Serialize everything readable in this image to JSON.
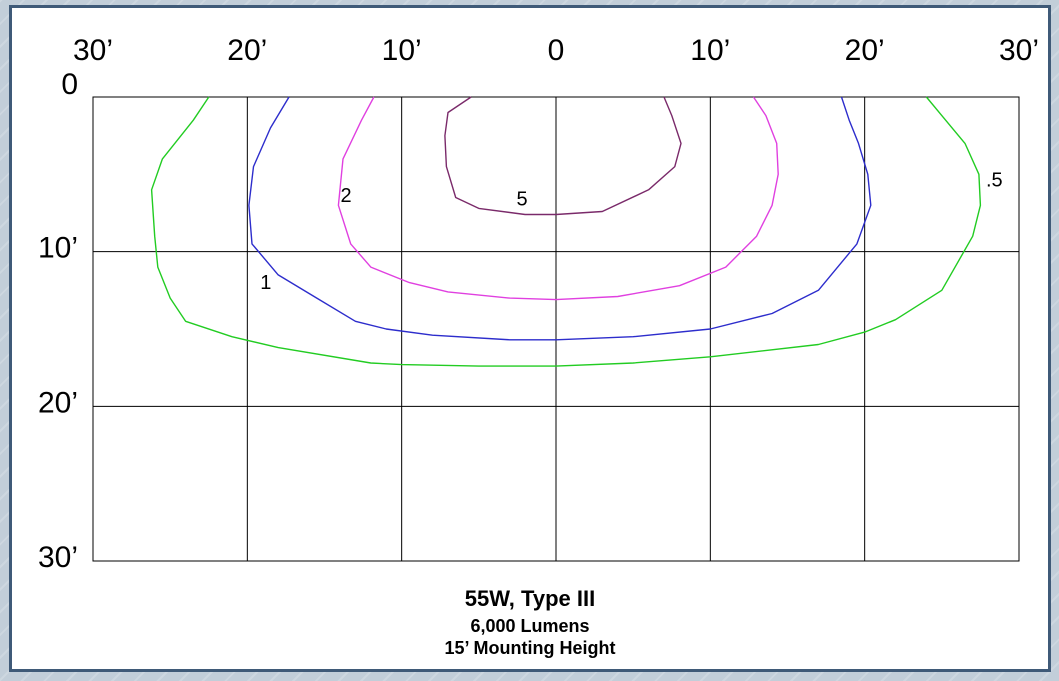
{
  "chart_data": {
    "type": "contour",
    "x_ticks": [
      "30’",
      "20’",
      "10’",
      "0",
      "10’",
      "20’",
      "30’"
    ],
    "y_ticks": [
      "0",
      "10’",
      "20’",
      "30’"
    ],
    "x_range_ft": [
      -30,
      30
    ],
    "y_range_ft": [
      0,
      30
    ],
    "grid": true,
    "contours": [
      {
        "label": ".5",
        "color": "#22cc22",
        "points": [
          [
            -22.5,
            0
          ],
          [
            -23.5,
            1.5
          ],
          [
            -25.5,
            4
          ],
          [
            -26.2,
            6
          ],
          [
            -26,
            9
          ],
          [
            -25.8,
            11
          ],
          [
            -25,
            13
          ],
          [
            -24,
            14.5
          ],
          [
            -21,
            15.5
          ],
          [
            -18,
            16.2
          ],
          [
            -12,
            17.2
          ],
          [
            -10,
            17.3
          ],
          [
            -5,
            17.4
          ],
          [
            0,
            17.4
          ],
          [
            5,
            17.2
          ],
          [
            10,
            16.8
          ],
          [
            17,
            16
          ],
          [
            20,
            15.2
          ],
          [
            22,
            14.4
          ],
          [
            25,
            12.5
          ],
          [
            27,
            9
          ],
          [
            27.5,
            7
          ],
          [
            27.4,
            5
          ],
          [
            26.5,
            3
          ],
          [
            25,
            1.2
          ],
          [
            24,
            0
          ]
        ]
      },
      {
        "label": "1",
        "color": "#2d2dcc",
        "points": [
          [
            -17.3,
            0
          ],
          [
            -18.5,
            2
          ],
          [
            -19.6,
            4.5
          ],
          [
            -19.9,
            7
          ],
          [
            -19.7,
            9.5
          ],
          [
            -18,
            11.5
          ],
          [
            -15.5,
            13
          ],
          [
            -13,
            14.5
          ],
          [
            -11,
            15
          ],
          [
            -8,
            15.4
          ],
          [
            -3,
            15.7
          ],
          [
            0,
            15.7
          ],
          [
            5,
            15.5
          ],
          [
            10,
            15
          ],
          [
            14,
            14
          ],
          [
            17,
            12.5
          ],
          [
            19.5,
            9.5
          ],
          [
            20.4,
            7
          ],
          [
            20.2,
            5
          ],
          [
            19.6,
            3
          ],
          [
            19,
            1.5
          ],
          [
            18.5,
            0
          ]
        ]
      },
      {
        "label": "2",
        "color": "#e040e0",
        "points": [
          [
            -11.8,
            0
          ],
          [
            -12.6,
            1.5
          ],
          [
            -13.8,
            4
          ],
          [
            -14.1,
            7
          ],
          [
            -13.3,
            9.5
          ],
          [
            -12,
            11
          ],
          [
            -9.5,
            12
          ],
          [
            -7,
            12.6
          ],
          [
            -3,
            13
          ],
          [
            0,
            13.1
          ],
          [
            4,
            12.9
          ],
          [
            8,
            12.2
          ],
          [
            11,
            11
          ],
          [
            13,
            9
          ],
          [
            14,
            7
          ],
          [
            14.4,
            5
          ],
          [
            14.3,
            3
          ],
          [
            13.6,
            1.2
          ],
          [
            12.8,
            0
          ]
        ]
      },
      {
        "label": "5",
        "color": "#7a2a6a",
        "points": [
          [
            -5.5,
            0
          ],
          [
            -7,
            1
          ],
          [
            -7.2,
            2.5
          ],
          [
            -7.1,
            4.5
          ],
          [
            -6.5,
            6.5
          ],
          [
            -5,
            7.2
          ],
          [
            -2,
            7.6
          ],
          [
            0,
            7.6
          ],
          [
            3,
            7.4
          ],
          [
            6,
            6
          ],
          [
            7.7,
            4.5
          ],
          [
            8.1,
            3
          ],
          [
            7.5,
            1.2
          ],
          [
            7,
            0
          ]
        ]
      }
    ],
    "contour_labels": [
      {
        "text": "2",
        "x": -13.6,
        "y": 6.8
      },
      {
        "text": "5",
        "x": -2.2,
        "y": 7.0
      },
      {
        "text": "1",
        "x": -18.8,
        "y": 12.4
      },
      {
        "text": ".5",
        "x": 28.4,
        "y": 5.8
      }
    ],
    "caption": {
      "title": "55W, Type III",
      "line1": "6,000 Lumens",
      "line2": "15’ Mounting Height"
    }
  }
}
